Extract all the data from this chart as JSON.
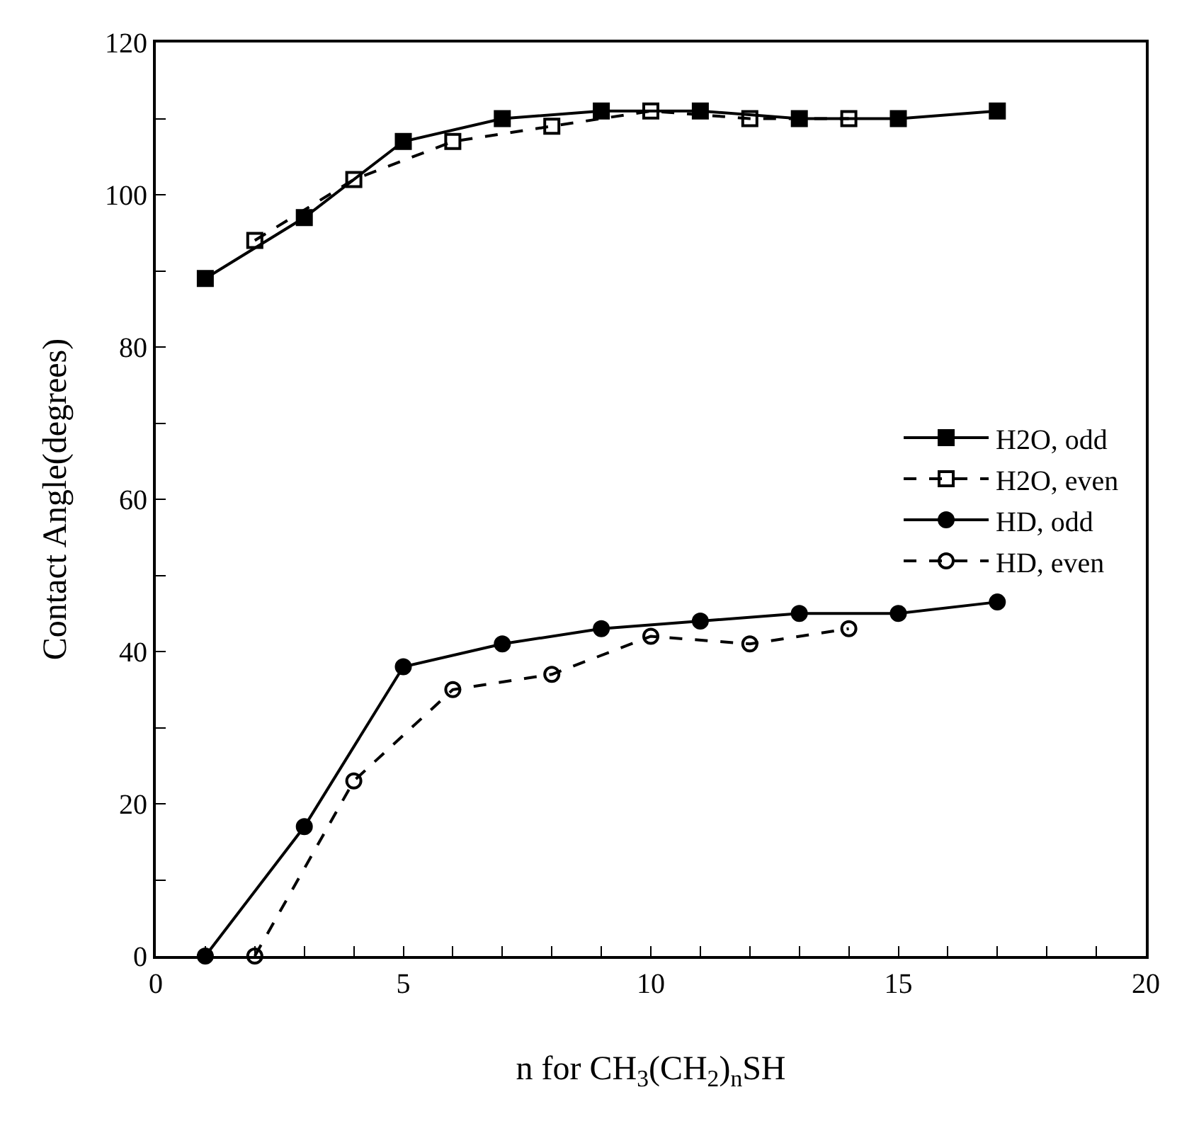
{
  "chart_data": {
    "type": "line",
    "xlabel": "n for CH$_{3}$(CH$_{2}$)$_{n}$SH",
    "ylabel": "Contact Angle(degrees)",
    "xlim": [
      0,
      20
    ],
    "ylim": [
      0,
      120
    ],
    "xticks": [
      0,
      {
        "value": 1,
        "label": null
      },
      {
        "value": 2,
        "label": null
      },
      {
        "value": 3,
        "label": null
      },
      {
        "value": 4,
        "label": null
      },
      5,
      {
        "value": 6,
        "label": null
      },
      {
        "value": 7,
        "label": null
      },
      {
        "value": 8,
        "label": null
      },
      {
        "value": 9,
        "label": null
      },
      10,
      {
        "value": 11,
        "label": null
      },
      {
        "value": 12,
        "label": null
      },
      {
        "value": 13,
        "label": null
      },
      {
        "value": 14,
        "label": null
      },
      15,
      {
        "value": 16,
        "label": null
      },
      {
        "value": 17,
        "label": null
      },
      {
        "value": 18,
        "label": null
      },
      {
        "value": 19,
        "label": null
      },
      20
    ],
    "yticks": [
      0,
      {
        "value": 10,
        "label": null
      },
      20,
      {
        "value": 30,
        "label": null
      },
      40,
      {
        "value": 50,
        "label": null
      },
      60,
      {
        "value": 70,
        "label": null
      },
      80,
      {
        "value": 90,
        "label": null
      },
      100,
      {
        "value": 110,
        "label": null
      },
      120
    ],
    "legend": "right",
    "series": [
      {
        "name": "H2O, odd",
        "color": "#000000",
        "marker": "square",
        "line_style": "solid",
        "x": [
          1,
          3,
          5,
          7,
          9,
          11,
          13,
          15,
          17
        ],
        "values": [
          89,
          97,
          107,
          110,
          111,
          111,
          110,
          110,
          111
        ]
      },
      {
        "name": "H2O, even",
        "color": "#000000",
        "marker": "square",
        "line_style": "dashed",
        "x": [
          2,
          4,
          6,
          8,
          10,
          12,
          14
        ],
        "values": [
          94,
          102,
          107,
          109,
          111,
          110,
          110
        ]
      },
      {
        "name": "HD, odd",
        "color": "#000000",
        "marker": "circle",
        "line_style": "solid",
        "x": [
          1,
          3,
          5,
          7,
          9,
          11,
          13,
          15,
          17
        ],
        "values": [
          0,
          17,
          38,
          41,
          43,
          44,
          45,
          45,
          46.5
        ]
      },
      {
        "name": "HD, even",
        "color": "#000000",
        "marker": "circle",
        "line_style": "dashed",
        "x": [
          2,
          4,
          6,
          8,
          10,
          12,
          14
        ],
        "values": [
          0,
          23,
          35,
          37,
          42,
          41,
          43
        ]
      }
    ]
  }
}
